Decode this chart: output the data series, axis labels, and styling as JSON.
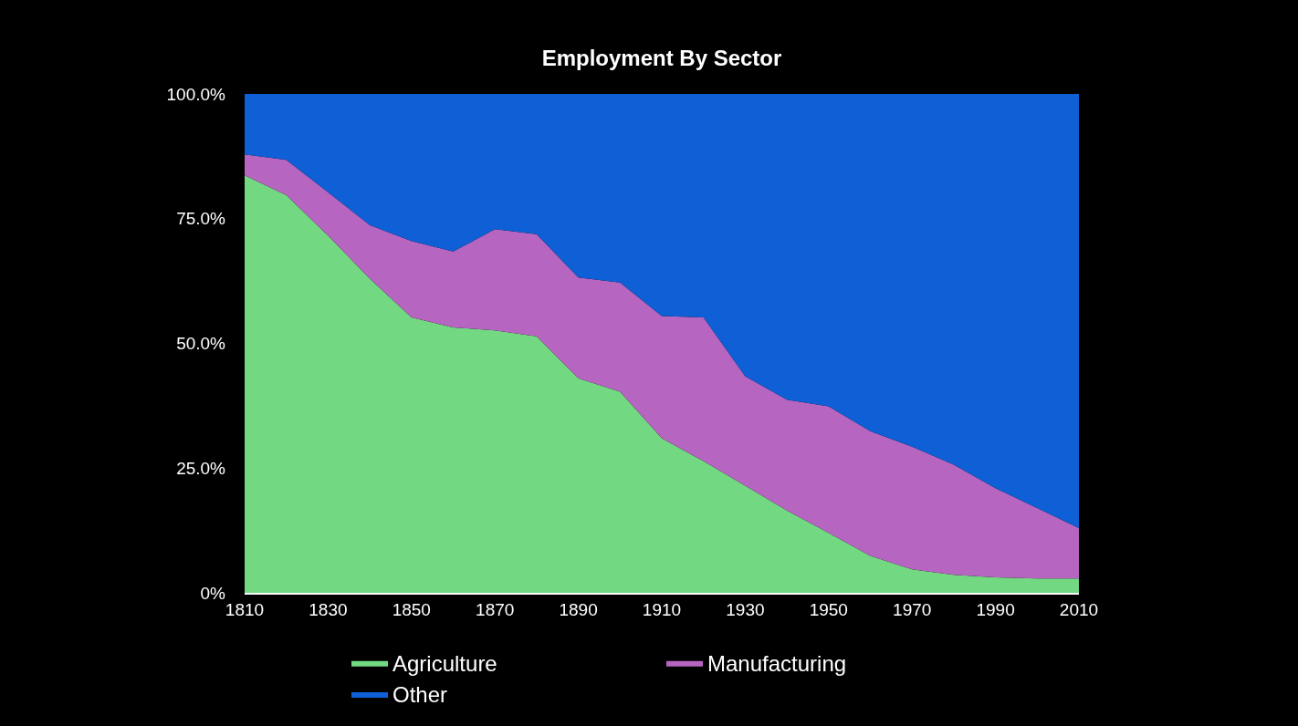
{
  "chart_data": {
    "type": "area",
    "title": "Employment By Sector",
    "stacked": true,
    "x": [
      1810,
      1820,
      1830,
      1840,
      1850,
      1860,
      1870,
      1880,
      1890,
      1900,
      1910,
      1920,
      1930,
      1940,
      1950,
      1960,
      1970,
      1980,
      1990,
      2000,
      2010
    ],
    "series": [
      {
        "name": "Agriculture",
        "color": "#72d982",
        "values": [
          83.7,
          79.7,
          71.6,
          63.0,
          55.2,
          53.2,
          52.6,
          51.4,
          43.0,
          40.3,
          31.0,
          26.4,
          21.5,
          16.5,
          12.0,
          7.4,
          4.7,
          3.6,
          3.1,
          2.9,
          2.9
        ]
      },
      {
        "name": "Manufacturing",
        "color": "#b665c0",
        "values": [
          4.2,
          7.1,
          8.7,
          10.7,
          15.3,
          15.2,
          20.3,
          20.5,
          20.2,
          21.9,
          24.5,
          28.8,
          21.9,
          22.2,
          25.4,
          25.0,
          24.6,
          22.1,
          17.9,
          14.1,
          10.1
        ]
      },
      {
        "name": "Other",
        "color": "#0f60d6",
        "values": [
          12.1,
          13.2,
          19.7,
          26.3,
          29.5,
          31.6,
          27.1,
          28.1,
          36.8,
          37.8,
          44.5,
          44.8,
          56.6,
          61.3,
          62.6,
          67.6,
          70.7,
          74.3,
          79.0,
          83.0,
          87.0
        ]
      }
    ],
    "xlim": [
      1810,
      2010
    ],
    "xticks": [
      1810,
      1830,
      1850,
      1870,
      1890,
      1910,
      1930,
      1950,
      1970,
      1990,
      2010
    ],
    "ylim": [
      0,
      100
    ],
    "yticks": [
      {
        "value": 0,
        "label": "0%"
      },
      {
        "value": 25,
        "label": "25.0%"
      },
      {
        "value": 50,
        "label": "50.0%"
      },
      {
        "value": 75,
        "label": "75.0%"
      },
      {
        "value": 100,
        "label": "100.0%"
      }
    ],
    "grid": false,
    "legend": "bottom"
  }
}
